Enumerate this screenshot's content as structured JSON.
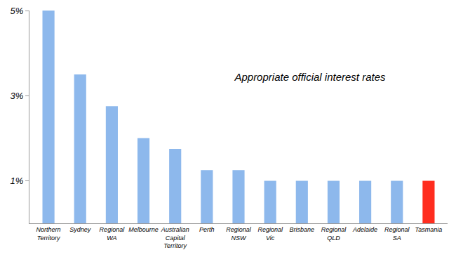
{
  "chart_data": {
    "type": "bar",
    "title": "Appropriate official interest rates",
    "categories": [
      "Northern Territory",
      "Sydney",
      "Regional WA",
      "Melbourne",
      "Australian Capital Territory",
      "Perth",
      "Regional NSW",
      "Regional Vic",
      "Brisbane",
      "Regional QLD",
      "Adelaide",
      "Regional SA",
      "Tasmania"
    ],
    "values": [
      5,
      3.5,
      2.75,
      2,
      1.75,
      1.25,
      1.25,
      1,
      1,
      1,
      1,
      1,
      1
    ],
    "colors": [
      "#8db8ec",
      "#8db8ec",
      "#8db8ec",
      "#8db8ec",
      "#8db8ec",
      "#8db8ec",
      "#8db8ec",
      "#8db8ec",
      "#8db8ec",
      "#8db8ec",
      "#8db8ec",
      "#8db8ec",
      "#ff2d1f"
    ],
    "ylim": [
      0,
      5
    ],
    "yticks": [
      {
        "value": 1,
        "label": "1%"
      },
      {
        "value": 3,
        "label": "3%"
      },
      {
        "value": 5,
        "label": "5%"
      }
    ],
    "grid": false
  }
}
